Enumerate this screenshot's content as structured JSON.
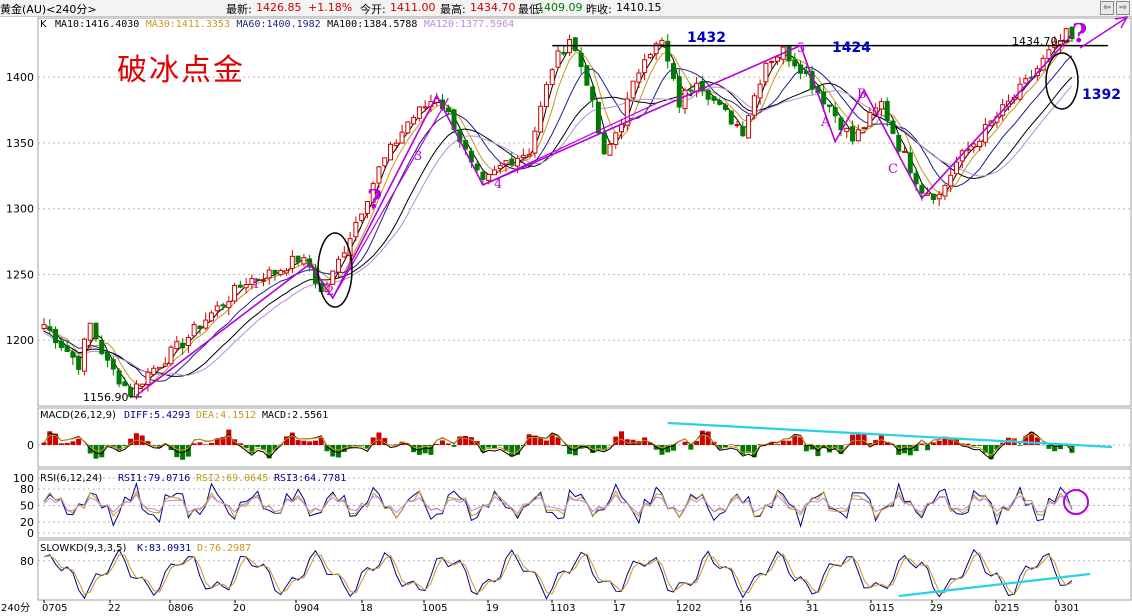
{
  "header": {
    "instrument": "黄金(AU)<240分>",
    "latest_label": "最新:",
    "latest_value": "1426.85",
    "change": "+1.18%",
    "open_label": "今开:",
    "open_value": "1411.00",
    "high_label": "最高:",
    "high_value": "1434.70",
    "low_label": "最低:",
    "low_value": "1409.09",
    "prev_close_label": "昨收:",
    "prev_close_value": "1410.15",
    "nav_left_icon": "arrow-left-icon",
    "nav_right_icon": "arrow-right-icon"
  },
  "colors": {
    "up": "#d00000",
    "down": "#007a00",
    "ma10": "#000000",
    "ma30": "#c8961e",
    "ma60": "#1e1e8c",
    "ma100": "#000000",
    "ma120": "#b48cdc",
    "annotation": "#b400dc",
    "pattern": "#b400dc",
    "trendline": "#28d2e6",
    "level": "#0000c8"
  },
  "chart_data": [
    {
      "type": "candlestick",
      "title": "K",
      "legend": [
        {
          "name": "MA10",
          "value": "1416.4030"
        },
        {
          "name": "MA30",
          "value": "1411.3353"
        },
        {
          "name": "MA60",
          "value": "1400.1982"
        },
        {
          "name": "MA100",
          "value": "1384.5788"
        },
        {
          "name": "MA120",
          "value": "1377.5964"
        }
      ],
      "ylim": [
        1150,
        1445
      ],
      "yticks": [
        1200,
        1250,
        1300,
        1350,
        1400
      ],
      "period": "240分",
      "xticks": [
        "0705",
        "22",
        "0806",
        "20",
        "0904",
        "18",
        "1005",
        "19",
        "1103",
        "17",
        "1202",
        "16",
        "31",
        "0115",
        "29",
        "0215",
        "0301"
      ],
      "price_path": [
        [
          0,
          1212
        ],
        [
          6,
          1182
        ],
        [
          8,
          1212
        ],
        [
          11,
          1182
        ],
        [
          15,
          1160
        ],
        [
          18,
          1175
        ],
        [
          24,
          1198
        ],
        [
          27,
          1212
        ],
        [
          35,
          1245
        ],
        [
          40,
          1252
        ],
        [
          44,
          1262
        ],
        [
          46,
          1256
        ],
        [
          48,
          1236
        ],
        [
          50,
          1250
        ],
        [
          58,
          1330
        ],
        [
          63,
          1366
        ],
        [
          68,
          1386
        ],
        [
          71,
          1364
        ],
        [
          74,
          1332
        ],
        [
          76,
          1318
        ],
        [
          80,
          1336
        ],
        [
          84,
          1344
        ],
        [
          88,
          1408
        ],
        [
          91,
          1430
        ],
        [
          94,
          1398
        ],
        [
          97,
          1338
        ],
        [
          100,
          1368
        ],
        [
          104,
          1418
        ],
        [
          107,
          1426
        ],
        [
          110,
          1380
        ],
        [
          113,
          1400
        ],
        [
          117,
          1376
        ],
        [
          121,
          1360
        ],
        [
          125,
          1412
        ],
        [
          128,
          1420
        ],
        [
          131,
          1408
        ],
        [
          133,
          1395
        ],
        [
          136,
          1378
        ],
        [
          140,
          1352
        ],
        [
          145,
          1380
        ],
        [
          148,
          1348
        ],
        [
          152,
          1315
        ],
        [
          155,
          1310
        ],
        [
          158,
          1335
        ],
        [
          164,
          1365
        ],
        [
          170,
          1395
        ],
        [
          174,
          1418
        ],
        [
          177,
          1432
        ],
        [
          178,
          1428
        ]
      ],
      "lows": [
        {
          "x": 16,
          "value": 1156.9
        }
      ],
      "highs": [
        {
          "x": 177,
          "value": 1434.7
        }
      ],
      "annotations": {
        "title_text": "破冰点金",
        "wave_labels": [
          "1",
          "2",
          "3",
          "4",
          "5",
          "A",
          "B",
          "C"
        ],
        "question_marks": [
          "?",
          "?"
        ],
        "level_labels": [
          "1432",
          "1424",
          "1392"
        ],
        "price_low": "1156.90",
        "price_high": "1434.70"
      }
    },
    {
      "type": "line",
      "title": "MACD(26,12,9)",
      "series": [
        {
          "name": "DIFF",
          "value": "5.4293"
        },
        {
          "name": "DEA",
          "value": "4.1512"
        },
        {
          "name": "MACD",
          "value": "2.5561"
        }
      ],
      "yticks": [
        0
      ]
    },
    {
      "type": "line",
      "title": "RSI(6,12,24)",
      "series": [
        {
          "name": "RSI1",
          "value": "79.0716"
        },
        {
          "name": "RSI2",
          "value": "69.0645"
        },
        {
          "name": "RSI3",
          "value": "64.7781"
        }
      ],
      "yticks": [
        100,
        80,
        50,
        20,
        0
      ]
    },
    {
      "type": "line",
      "title": "SLOWKD(9,3,3,5)",
      "series": [
        {
          "name": "K",
          "value": "83.0931"
        },
        {
          "name": "D",
          "value": "76.2987"
        }
      ],
      "yticks": [
        80
      ]
    }
  ]
}
